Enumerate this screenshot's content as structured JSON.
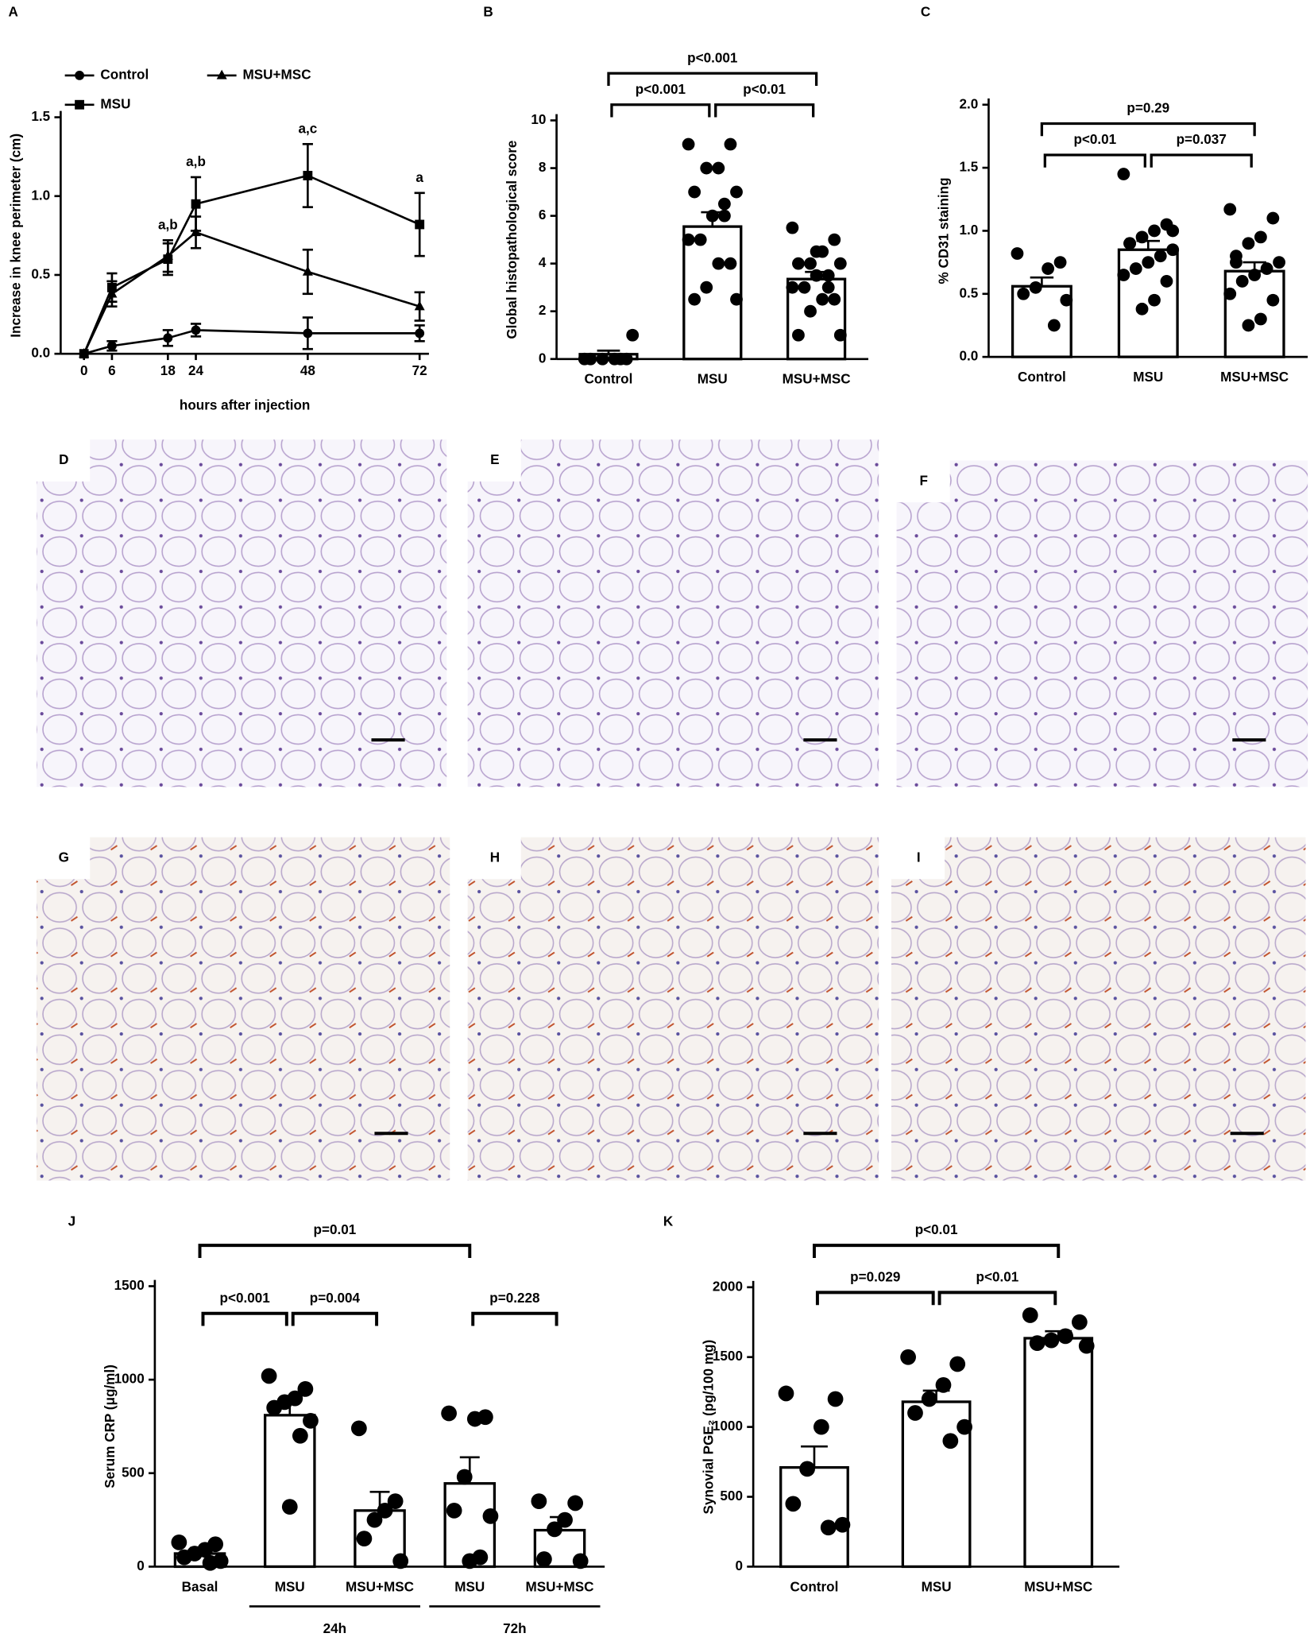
{
  "chart_data": [
    {
      "type": "line",
      "title": "A",
      "x": [
        0,
        6,
        18,
        24,
        48,
        72
      ],
      "xlim": [
        -5,
        74
      ],
      "xticks": [
        0,
        6,
        18,
        24,
        48,
        72
      ],
      "ylim": [
        0,
        1.5
      ],
      "yticks": [
        {
          "value": 0,
          "label": "0.0"
        },
        {
          "value": 0.5,
          "label": "0.5"
        },
        {
          "value": 1,
          "label": "1.0"
        },
        {
          "value": 1.5,
          "label": "1.5"
        }
      ],
      "xlabel": "hours after injection",
      "ylabel": "Increase in knee perimeter (cm)",
      "series": [
        {
          "name": "Control",
          "marker": "circle",
          "color": "#000000",
          "values": [
            0,
            0.05,
            0.1,
            0.15,
            0.13,
            0.13
          ],
          "errors": [
            0,
            0.03,
            0.05,
            0.04,
            0.1,
            0.05
          ]
        },
        {
          "name": "MSU",
          "marker": "square",
          "color": "#000000",
          "values": [
            0,
            0.42,
            0.6,
            0.95,
            1.13,
            0.82
          ],
          "errors": [
            0,
            0.09,
            0.1,
            0.17,
            0.2,
            0.2
          ]
        },
        {
          "name": "MSU+MSC",
          "marker": "triangle",
          "color": "#000000",
          "values": [
            0,
            0.38,
            0.62,
            0.77,
            0.52,
            0.3
          ],
          "errors": [
            0,
            0.08,
            0.1,
            0.1,
            0.14,
            0.09
          ]
        }
      ],
      "annotations": [
        {
          "x": 18,
          "text": "a,b"
        },
        {
          "x": 24,
          "text": "a,b"
        },
        {
          "x": 48,
          "text": "a,c"
        },
        {
          "x": 72,
          "text": "a"
        }
      ]
    },
    {
      "type": "bar",
      "title": "B",
      "categories": [
        "Control",
        "MSU",
        "MSU+MSC"
      ],
      "values": [
        0.2,
        5.55,
        3.35
      ],
      "errors": [
        0.15,
        0.6,
        0.3
      ],
      "points": [
        [
          0,
          0,
          0,
          0,
          0,
          1,
          0
        ],
        [
          9,
          9,
          8,
          8,
          7,
          7,
          6,
          6,
          5,
          5,
          4,
          4,
          3,
          2.5,
          2.5,
          6.5
        ],
        [
          5.5,
          5,
          4.5,
          4,
          4,
          4,
          3.5,
          3.5,
          3,
          3,
          2.5,
          2.5,
          2,
          1,
          1,
          3,
          4.5
        ]
      ],
      "ylim": [
        0,
        10
      ],
      "yticks": [
        0,
        2,
        4,
        6,
        8,
        10
      ],
      "ylabel": "Global histopathological score",
      "brackets": [
        {
          "from": 0,
          "to": 1,
          "label": "p<0.001"
        },
        {
          "from": 1,
          "to": 2,
          "label": "p<0.01"
        },
        {
          "from": 0,
          "to": 2,
          "label": "p<0.001"
        }
      ]
    },
    {
      "type": "bar",
      "title": "C",
      "categories": [
        "Control",
        "MSU",
        "MSU+MSC"
      ],
      "values": [
        0.56,
        0.85,
        0.68
      ],
      "errors": [
        0.07,
        0.07,
        0.07
      ],
      "points": [
        [
          0.82,
          0.75,
          0.7,
          0.55,
          0.5,
          0.45,
          0.25
        ],
        [
          1.45,
          1.05,
          1.0,
          0.95,
          0.9,
          0.85,
          0.8,
          0.75,
          0.7,
          0.65,
          0.6,
          0.45,
          0.38,
          0.9,
          1.0
        ],
        [
          1.17,
          1.1,
          0.95,
          0.9,
          0.8,
          0.75,
          0.7,
          0.65,
          0.6,
          0.5,
          0.45,
          0.3,
          0.25,
          0.75
        ]
      ],
      "ylim": [
        0,
        2
      ],
      "yticks": [
        {
          "value": 0,
          "label": "0.0"
        },
        {
          "value": 0.5,
          "label": "0.5"
        },
        {
          "value": 1,
          "label": "1.0"
        },
        {
          "value": 1.5,
          "label": "1.5"
        },
        {
          "value": 2,
          "label": "2.0"
        }
      ],
      "ylabel": "% CD31 staining",
      "brackets": [
        {
          "from": 0,
          "to": 1,
          "label": "p<0.01"
        },
        {
          "from": 1,
          "to": 2,
          "label": "p=0.037"
        },
        {
          "from": 0,
          "to": 2,
          "label": "p=0.29"
        }
      ]
    },
    {
      "type": "bar",
      "title": "J",
      "categories": [
        "Basal",
        "MSU",
        "MSU+MSC",
        "MSU",
        "MSU+MSC"
      ],
      "values": [
        70,
        810,
        300,
        445,
        195
      ],
      "errors": [
        30,
        90,
        100,
        140,
        70
      ],
      "points": [
        [
          130,
          120,
          90,
          70,
          50,
          30,
          20
        ],
        [
          1020,
          950,
          900,
          880,
          850,
          780,
          700,
          320
        ],
        [
          740,
          350,
          300,
          250,
          150,
          30
        ],
        [
          820,
          800,
          790,
          480,
          300,
          270,
          50,
          30
        ],
        [
          350,
          340,
          250,
          200,
          40,
          30
        ]
      ],
      "ylim": [
        0,
        1500
      ],
      "yticks": [
        0,
        500,
        1000,
        1500
      ],
      "ylabel": "Serum CRP (μg/ml)",
      "groups": [
        {
          "label": "24h",
          "from": 1,
          "to": 2
        },
        {
          "label": "72h",
          "from": 3,
          "to": 4
        }
      ],
      "brackets": [
        {
          "from": 0,
          "to": 1,
          "label": "p<0.001"
        },
        {
          "from": 1,
          "to": 2,
          "label": "p=0.004"
        },
        {
          "from": 3,
          "to": 4,
          "label": "p=0.228"
        },
        {
          "from": 0,
          "to": 3,
          "label": "p=0.01"
        }
      ]
    },
    {
      "type": "bar",
      "title": "K",
      "categories": [
        "Control",
        "MSU",
        "MSU+MSC"
      ],
      "values": [
        710,
        1180,
        1635
      ],
      "errors": [
        150,
        80,
        50
      ],
      "points": [
        [
          1240,
          1200,
          1000,
          700,
          450,
          300,
          280
        ],
        [
          1500,
          1450,
          1300,
          1200,
          1100,
          1000,
          900
        ],
        [
          1800,
          1750,
          1650,
          1620,
          1600,
          1580
        ]
      ],
      "ylim": [
        0,
        2000
      ],
      "yticks": [
        0,
        500,
        1000,
        1500,
        2000
      ],
      "ylabel": "Synovial PGE₂ (pg/100 mg)",
      "brackets": [
        {
          "from": 0,
          "to": 1,
          "label": "p=0.029"
        },
        {
          "from": 1,
          "to": 2,
          "label": "p<0.01"
        },
        {
          "from": 0,
          "to": 2,
          "label": "p<0.01"
        }
      ]
    }
  ],
  "images": [
    {
      "label": "D"
    },
    {
      "label": "E"
    },
    {
      "label": "F"
    },
    {
      "label": "G"
    },
    {
      "label": "H"
    },
    {
      "label": "I"
    }
  ]
}
